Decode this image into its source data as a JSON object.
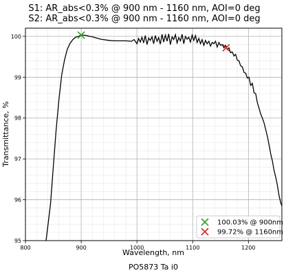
{
  "chart_data": {
    "type": "line",
    "title_lines": [
      "S1: AR_abs<0.3% @ 900 nm - 1160 nm, AOI=0 deg",
      "S2: AR_abs<0.3% @ 900 nm - 1160 nm, AOI=0 deg"
    ],
    "xlabel": "Wavelength, nm",
    "ylabel": "Transmittance, %",
    "caption": "PO5873 Ta i0",
    "xlim": [
      800,
      1260
    ],
    "ylim": [
      95,
      100.2
    ],
    "xticks": [
      800,
      900,
      1000,
      1100,
      1200
    ],
    "yticks": [
      95,
      96,
      97,
      98,
      99,
      100
    ],
    "grid": "major and minor",
    "legend_position": "lower-right",
    "colors": {
      "line": "#000000",
      "marker_start": "#2ca02c",
      "marker_end": "#d62728"
    },
    "series": [
      {
        "x": [
          837,
          845,
          850,
          855,
          860,
          865,
          870,
          875,
          880,
          885,
          890,
          895,
          900,
          905,
          910,
          915,
          920,
          925,
          930,
          935,
          940,
          945,
          950,
          960,
          970,
          980,
          990,
          995,
          1000,
          1003,
          1006,
          1009,
          1012,
          1015,
          1018,
          1021,
          1024,
          1027,
          1030,
          1033,
          1036,
          1039,
          1042,
          1045,
          1048,
          1051,
          1054,
          1057,
          1060,
          1063,
          1066,
          1069,
          1072,
          1075,
          1078,
          1081,
          1084,
          1087,
          1090,
          1093,
          1096,
          1099,
          1102,
          1105,
          1108,
          1111,
          1114,
          1117,
          1120,
          1123,
          1126,
          1129,
          1132,
          1135,
          1138,
          1141,
          1144,
          1147,
          1150,
          1153,
          1156,
          1159,
          1162,
          1165,
          1168,
          1171,
          1174,
          1177,
          1180,
          1183,
          1186,
          1189,
          1192,
          1195,
          1198,
          1201,
          1204,
          1207,
          1210,
          1213,
          1216,
          1219,
          1222,
          1225,
          1228,
          1231,
          1234,
          1237,
          1240,
          1243,
          1246,
          1249,
          1252,
          1255,
          1258,
          1260
        ],
        "y": [
          95.0,
          95.9,
          96.8,
          97.7,
          98.45,
          99.05,
          99.42,
          99.68,
          99.83,
          99.92,
          99.98,
          100.0,
          100.03,
          100.03,
          100.02,
          100.0,
          99.99,
          99.97,
          99.95,
          99.93,
          99.92,
          99.91,
          99.9,
          99.89,
          99.89,
          99.89,
          99.88,
          99.92,
          99.82,
          99.95,
          99.86,
          99.98,
          99.84,
          100.02,
          99.8,
          99.96,
          99.9,
          99.99,
          99.82,
          100.02,
          99.88,
          99.97,
          99.81,
          100.05,
          99.86,
          100.03,
          99.88,
          100.06,
          99.8,
          99.99,
          99.92,
          100.04,
          99.84,
          99.97,
          99.89,
          100.05,
          99.82,
          100.0,
          99.93,
          99.98,
          99.86,
          100.03,
          99.9,
          100.02,
          99.85,
          99.95,
          99.82,
          99.92,
          99.78,
          99.9,
          99.82,
          99.88,
          99.76,
          99.85,
          99.82,
          99.88,
          99.74,
          99.85,
          99.78,
          99.8,
          99.72,
          99.78,
          99.68,
          99.72,
          99.6,
          99.62,
          99.52,
          99.56,
          99.42,
          99.4,
          99.28,
          99.26,
          99.12,
          99.1,
          98.98,
          99.0,
          98.8,
          98.85,
          98.62,
          98.6,
          98.38,
          98.24,
          98.1,
          98.0,
          97.88,
          97.72,
          97.55,
          97.35,
          97.12,
          96.95,
          96.72,
          96.55,
          96.35,
          96.1,
          95.92,
          95.85
        ]
      }
    ],
    "markers": [
      {
        "x": 900,
        "y": 100.03,
        "label": "100.03% @ 900nm",
        "color": "#2ca02c"
      },
      {
        "x": 1160,
        "y": 99.72,
        "label": "99.72% @ 1160nm",
        "color": "#d62728"
      }
    ]
  }
}
